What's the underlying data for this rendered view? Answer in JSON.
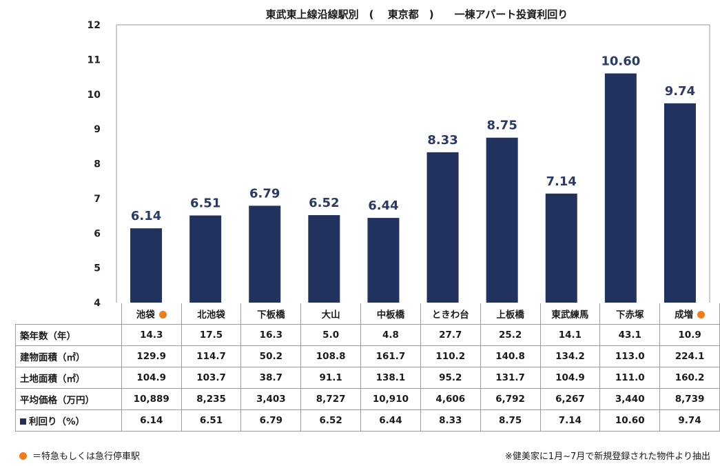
{
  "title": "東武東上線沿線駅別　(　 東京都　)　　一棟アパート投資利回り",
  "colors": {
    "bar": "#22325f",
    "label": "#2a3a66",
    "marker": "#f07c1a",
    "grid": "#9a9a9a"
  },
  "chart_data": {
    "type": "bar",
    "title": "東武東上線沿線駅別　(　 東京都　)　　一棟アパート投資利回り",
    "categories": [
      "池袋",
      "北池袋",
      "下板橋",
      "大山",
      "中板橋",
      "ときわ台",
      "上板橋",
      "東武練馬",
      "下赤塚",
      "成増"
    ],
    "values": [
      6.14,
      6.51,
      6.79,
      6.52,
      6.44,
      8.33,
      8.75,
      7.14,
      10.6,
      9.74
    ],
    "value_labels": [
      "6.14",
      "6.51",
      "6.79",
      "6.52",
      "6.44",
      "8.33",
      "8.75",
      "7.14",
      "10.60",
      "9.74"
    ],
    "ylim": [
      4,
      12
    ],
    "yticks": [
      "4",
      "5",
      "6",
      "7",
      "8",
      "9",
      "10",
      "11",
      "12"
    ],
    "grid": false,
    "express_stop_markers": [
      true,
      false,
      false,
      false,
      false,
      false,
      false,
      false,
      false,
      true
    ]
  },
  "table": {
    "rows": [
      {
        "label": "築年数（年）",
        "values": [
          "14.3",
          "17.5",
          "16.3",
          "5.0",
          "4.8",
          "27.7",
          "25.2",
          "14.1",
          "43.1",
          "10.9"
        ]
      },
      {
        "label": "建物面積（㎡）",
        "values": [
          "129.9",
          "114.7",
          "50.2",
          "108.8",
          "161.7",
          "110.2",
          "140.8",
          "134.2",
          "113.0",
          "224.1"
        ]
      },
      {
        "label": "土地面積（㎡）",
        "values": [
          "104.9",
          "103.7",
          "38.7",
          "91.1",
          "138.1",
          "95.2",
          "131.7",
          "104.9",
          "111.0",
          "160.2"
        ]
      },
      {
        "label": "平均価格（万円）",
        "values": [
          "10,889",
          "8,235",
          "3,403",
          "8,727",
          "10,910",
          "4,606",
          "6,792",
          "6,267",
          "3,440",
          "8,739"
        ]
      },
      {
        "label": "利回り（%）",
        "values": [
          "6.14",
          "6.51",
          "6.79",
          "6.52",
          "6.44",
          "8.33",
          "8.75",
          "7.14",
          "10.60",
          "9.74"
        ]
      }
    ]
  },
  "footnote_left": "＝特急もしくは急行停車駅",
  "footnote_right": "※健美家に1月~7月で新規登録された物件より抽出"
}
